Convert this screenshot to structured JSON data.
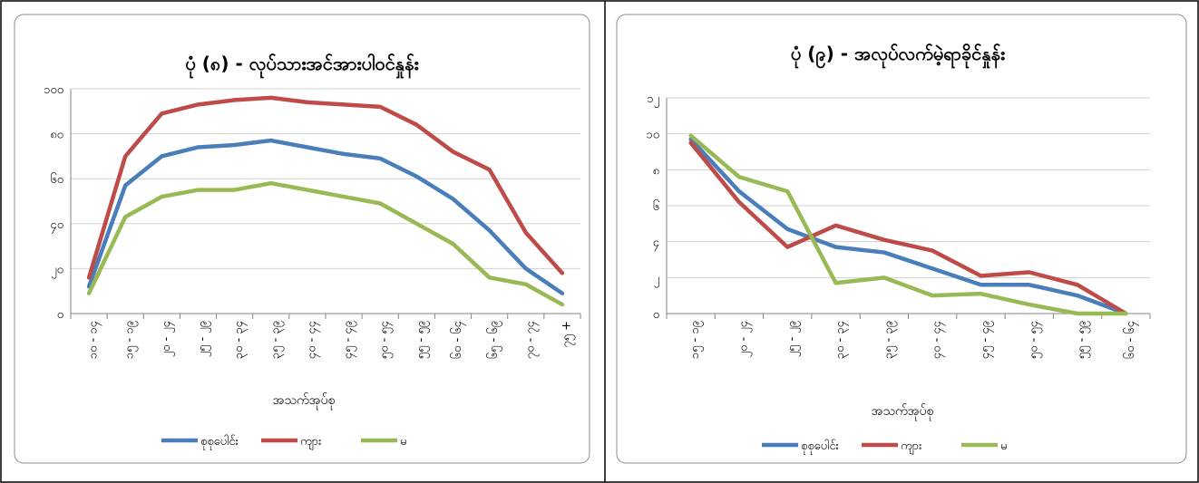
{
  "chart_data": [
    {
      "type": "line",
      "title": "ပုံ (၈) - လုပ်သားအင်အားပါဝင်နှုန်း",
      "xlabel": "အသက်အုပ်စု",
      "ylabel": "",
      "ylim": [
        0,
        100
      ],
      "yticks": [
        0,
        20,
        40,
        60,
        80,
        100
      ],
      "ytick_labels": [
        "၀",
        "၂၀",
        "၄၀",
        "၆၀",
        "၈၀",
        "၁၀၀"
      ],
      "categories": [
        "၁၀ - ၁၄",
        "၁၅ - ၁၉",
        "၂၀ - ၂၄",
        "၂၅ - ၂၉",
        "၃၀ - ၃၄",
        "၃၅ - ၃၉",
        "၄၀ - ၄၄",
        "၄၅ - ၄၉",
        "၅၀ - ၅၄",
        "၅၅ - ၅၉",
        "၆၀ - ၆၄",
        "၆၅ - ၆၉",
        "၇၀ - ၇၄",
        "၇၅ +"
      ],
      "series": [
        {
          "name": "စုစုပေါင်း",
          "color": "#4a7ebb",
          "values": [
            12,
            57,
            70,
            74,
            75,
            77,
            74,
            71,
            69,
            61,
            51,
            37,
            20,
            9
          ]
        },
        {
          "name": "ကျား",
          "color": "#be4b48",
          "values": [
            16,
            70,
            89,
            93,
            95,
            96,
            94,
            93,
            92,
            84,
            72,
            64,
            36,
            18
          ]
        },
        {
          "name": "မ",
          "color": "#98b954",
          "values": [
            9,
            43,
            52,
            55,
            55,
            58,
            55,
            52,
            49,
            40,
            31,
            16,
            13,
            4
          ]
        }
      ],
      "legend_position": "bottom",
      "grid": true
    },
    {
      "type": "line",
      "title": "ပုံ (၉) - အလုပ်လက်မဲ့ရာခိုင်နှုန်း",
      "xlabel": "အသက်အုပ်စု",
      "ylabel": "",
      "ylim": [
        0,
        12
      ],
      "yticks": [
        0,
        2,
        4,
        6,
        8,
        10,
        12
      ],
      "ytick_labels": [
        "၀",
        "၂",
        "၄",
        "၆",
        "၈",
        "၁၀",
        "၁၂"
      ],
      "categories": [
        "၁၅ - ၁၉",
        "၂၀ - ၂၄",
        "၂၅ - ၂၉",
        "၃၀ - ၃၄",
        "၃၅ - ၃၉",
        "၄၀ - ၄၄",
        "၄၅ - ၄၉",
        "၅၀ - ၅၄",
        "၅၅ - ၅၉",
        "၆၀ - ၆၄"
      ],
      "series": [
        {
          "name": "စုစုပေါင်း",
          "color": "#4a7ebb",
          "values": [
            9.7,
            6.8,
            4.7,
            3.7,
            3.4,
            2.5,
            1.6,
            1.6,
            1.0,
            0
          ]
        },
        {
          "name": "ကျား",
          "color": "#be4b48",
          "values": [
            9.5,
            6.2,
            3.7,
            4.9,
            4.1,
            3.5,
            2.1,
            2.3,
            1.6,
            0
          ]
        },
        {
          "name": "မ",
          "color": "#98b954",
          "values": [
            9.9,
            7.6,
            6.8,
            1.7,
            2.0,
            1.0,
            1.1,
            0.5,
            0,
            0
          ]
        }
      ],
      "legend_position": "bottom",
      "grid": true
    }
  ]
}
